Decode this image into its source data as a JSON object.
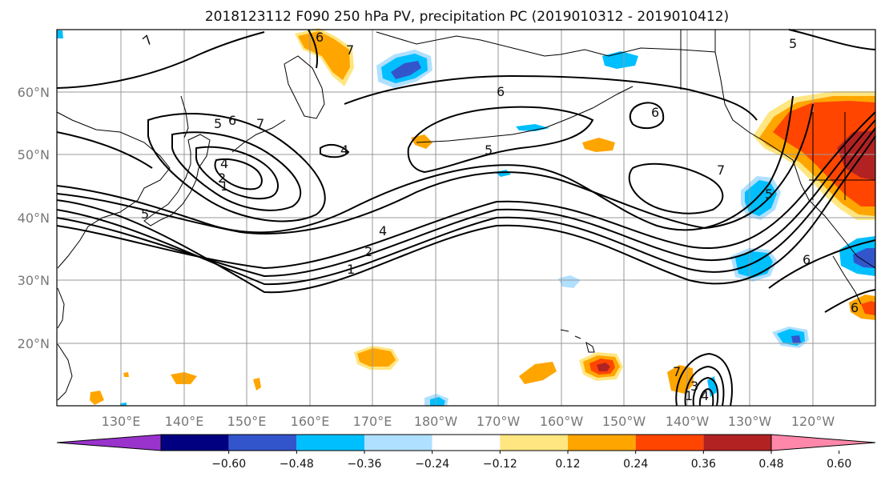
{
  "title": "2018123112 F090 250 hPa PV, precipitation PC (2019010312 - 2019010412)",
  "lat_labels": [
    "60°N",
    "50°N",
    "40°N",
    "30°N",
    "20°N"
  ],
  "lon_labels": [
    "130°E",
    "140°E",
    "150°E",
    "160°E",
    "170°E",
    "180°W",
    "170°W",
    "160°W",
    "150°W",
    "140°W",
    "130°W",
    "120°W"
  ],
  "colorbar": {
    "labels": [
      "−0.60",
      "−0.48",
      "−0.36",
      "−0.24",
      "−0.12",
      "0.12",
      "0.24",
      "0.36",
      "0.48",
      "0.60"
    ],
    "colors": [
      "#9933cc",
      "#000080",
      "#3355cc",
      "#00bfff",
      "#b0e0ff",
      "#ffffff",
      "#ffe680",
      "#ffa500",
      "#ff4500",
      "#b22222",
      "#ff88aa"
    ]
  },
  "contour_labels": [
    "7",
    "6",
    "7",
    "5",
    "5",
    "6",
    "7",
    "4",
    "5",
    "4",
    "6",
    "2",
    "1",
    "4",
    "2",
    "1",
    "5",
    "6",
    "7",
    "5",
    "6",
    "6",
    "7",
    "3",
    "1",
    "4"
  ]
}
